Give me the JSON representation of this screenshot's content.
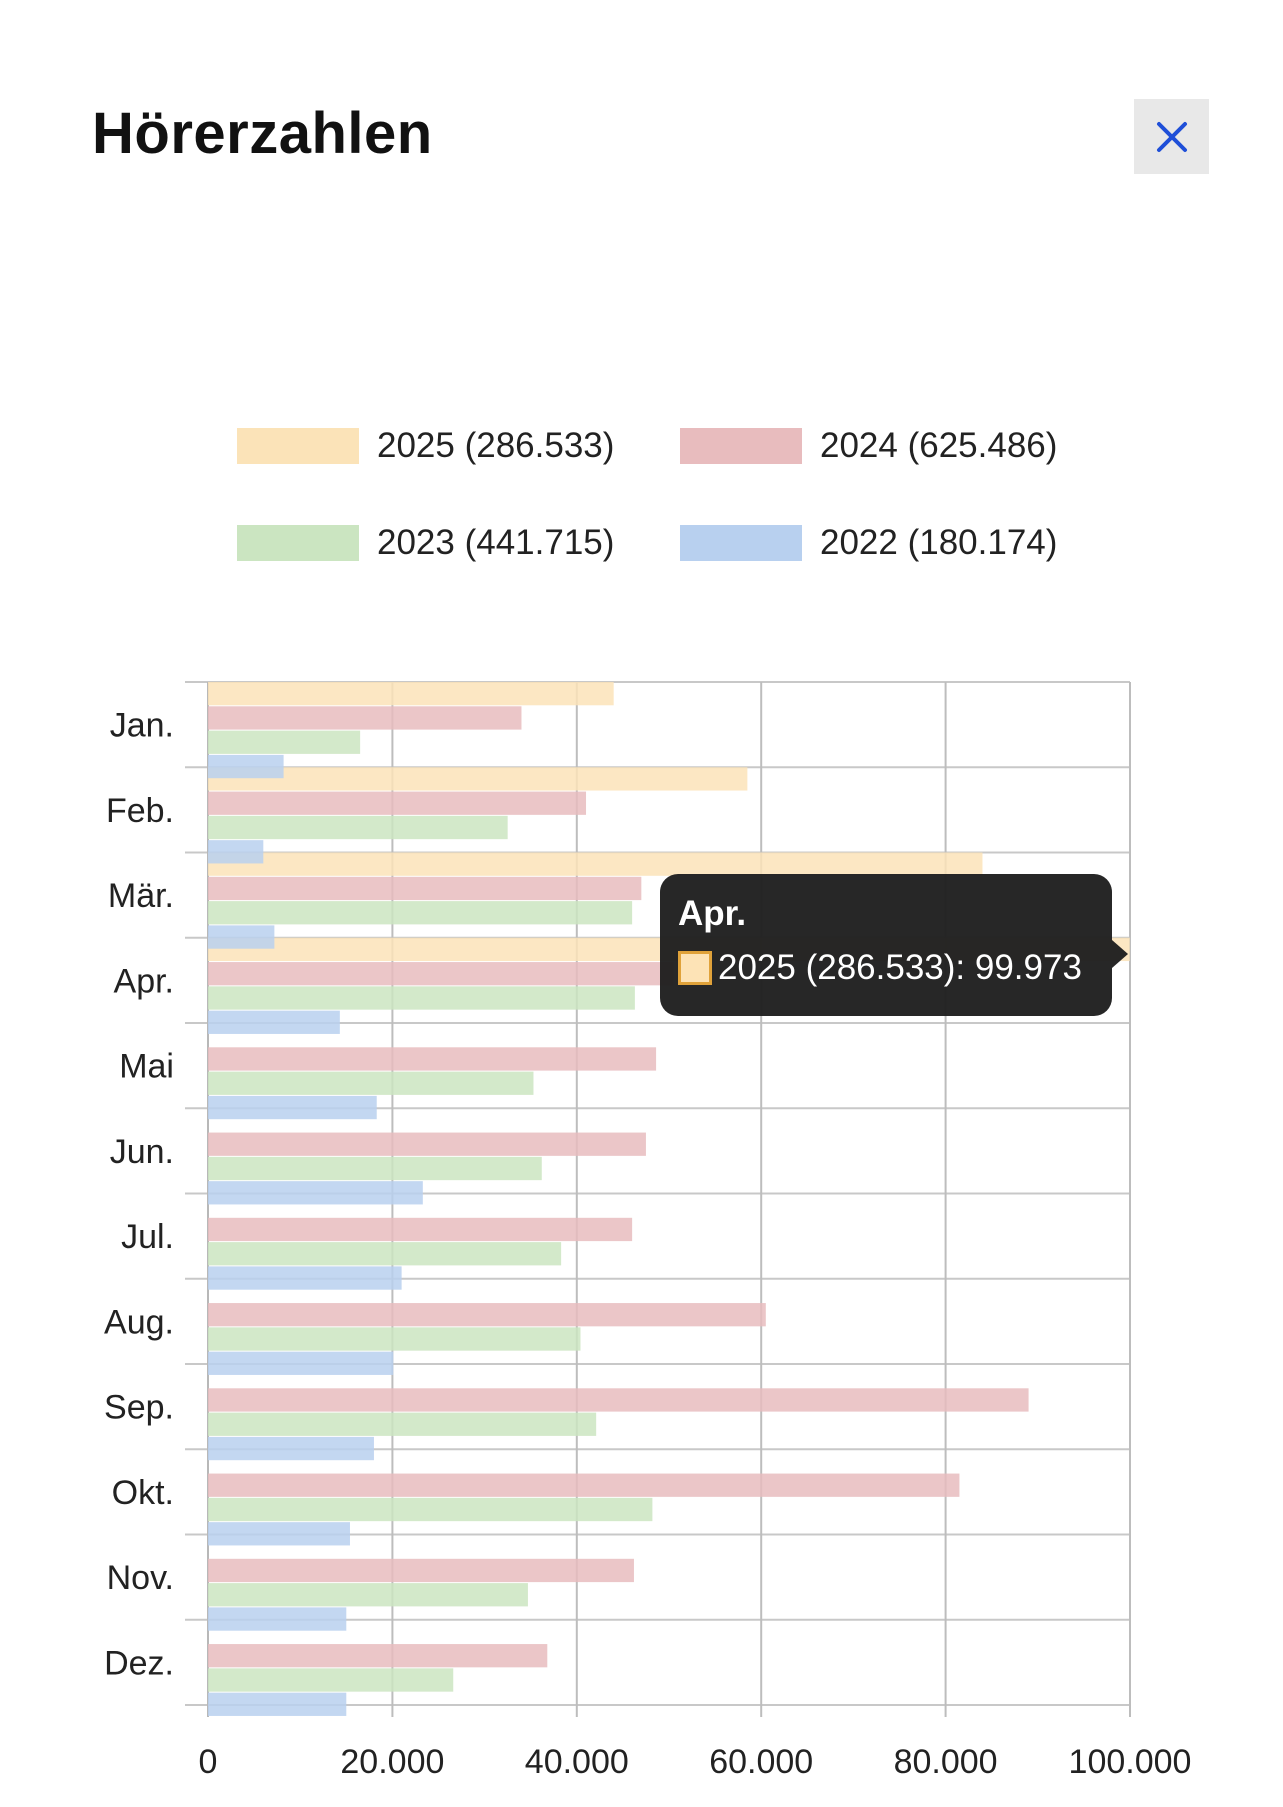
{
  "header": {
    "title": "Hörerzahlen"
  },
  "close_button": {
    "icon": "close-icon",
    "color": "#1f4fd8"
  },
  "legend": [
    {
      "label": "2025 (286.533)",
      "color": "#fbe3b8"
    },
    {
      "label": "2024 (625.486)",
      "color": "#e8bcbe"
    },
    {
      "label": "2023 (441.715)",
      "color": "#cbe5c1"
    },
    {
      "label": "2022 (180.174)",
      "color": "#b8d0ef"
    }
  ],
  "tooltip": {
    "title": "Apr.",
    "text": "2025 (286.533): 99.973",
    "swatch_color": "#fde3b6",
    "swatch_border": "#e0a23a"
  },
  "chart_data": {
    "type": "bar",
    "orientation": "horizontal",
    "categories": [
      "Jan.",
      "Feb.",
      "Mär.",
      "Apr.",
      "Mai",
      "Jun.",
      "Jul.",
      "Aug.",
      "Sep.",
      "Okt.",
      "Nov.",
      "Dez."
    ],
    "series": [
      {
        "name": "2025 (286.533)",
        "color": "#fbe3b8",
        "values": [
          44000,
          58500,
          84000,
          99973,
          null,
          null,
          null,
          null,
          null,
          null,
          null,
          null
        ]
      },
      {
        "name": "2024 (625.486)",
        "color": "#e8bcbe",
        "values": [
          34000,
          41000,
          47000,
          50500,
          48600,
          47500,
          46000,
          60500,
          89000,
          81500,
          46200,
          36800
        ]
      },
      {
        "name": "2023 (441.715)",
        "color": "#cbe5c1",
        "values": [
          16500,
          32500,
          46000,
          46300,
          35300,
          36200,
          38300,
          40400,
          42100,
          48200,
          34700,
          26600
        ]
      },
      {
        "name": "2022 (180.174)",
        "color": "#b8d0ef",
        "values": [
          8200,
          6000,
          7200,
          14300,
          18300,
          23300,
          21000,
          20100,
          18000,
          15400,
          15000,
          15000
        ]
      }
    ],
    "xlim": [
      0,
      100000
    ],
    "xticks": [
      0,
      20000,
      40000,
      60000,
      80000,
      100000
    ],
    "xtick_labels": [
      "0",
      "20.000",
      "40.000",
      "60.000",
      "80.000",
      "100.000"
    ],
    "grid": true,
    "legend_position": "top"
  }
}
